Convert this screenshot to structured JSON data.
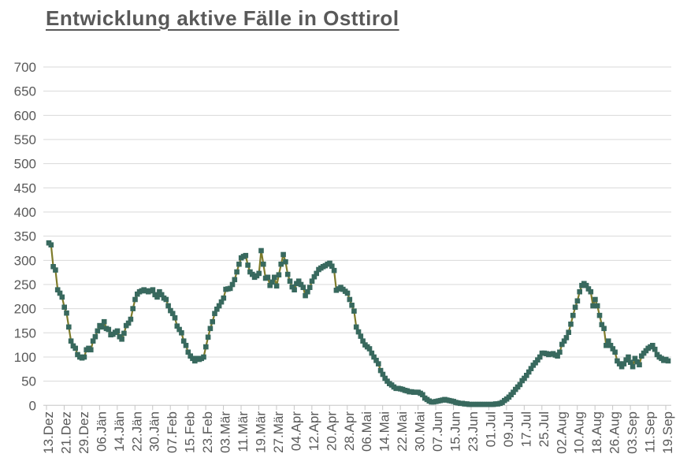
{
  "chart_data": {
    "type": "line",
    "title": "Entwicklung aktive Fälle in Osttirol",
    "legend": "none",
    "grid": "horizontal-only",
    "ylim": [
      0,
      700
    ],
    "y_step": 50,
    "y_tick_labels": [
      "0",
      "50",
      "100",
      "150",
      "200",
      "250",
      "300",
      "350",
      "400",
      "450",
      "500",
      "550",
      "600",
      "650",
      "700"
    ],
    "x_tick_labels": [
      "13.Dez",
      "21.Dez",
      "29.Dez",
      "06.Jän",
      "14.Jän",
      "22.Jän",
      "30.Jän",
      "07.Feb",
      "15.Feb",
      "23.Feb",
      "03.Mär",
      "11.Mär",
      "19.Mär",
      "27.Mär",
      "04.Apr",
      "12.Apr",
      "20.Apr",
      "28.Apr",
      "06.Mai",
      "14.Mai",
      "22.Mai",
      "30.Mai",
      "07.Jun",
      "15.Jun",
      "23.Jun",
      "01.Jul",
      "09.Jul",
      "17.Jul",
      "25.Jul",
      "02.Aug",
      "10.Aug",
      "18.Aug",
      "26.Aug",
      "03.Sep",
      "11.Sep",
      "19.Sep"
    ],
    "points_per_tick": 8,
    "marker": "square",
    "colors": {
      "marker": "#38695e",
      "line": "#7e7b2a",
      "gridline": "#d9d9d9",
      "axis": "#c6c6c6",
      "labels": "#595959",
      "title": "#595959"
    },
    "values": [
      336,
      332,
      287,
      280,
      239,
      232,
      224,
      203,
      191,
      162,
      133,
      123,
      118,
      105,
      100,
      98,
      100,
      115,
      118,
      115,
      133,
      142,
      154,
      165,
      162,
      173,
      159,
      157,
      146,
      147,
      151,
      154,
      142,
      137,
      149,
      165,
      170,
      178,
      200,
      219,
      230,
      235,
      237,
      239,
      237,
      235,
      237,
      239,
      229,
      224,
      235,
      229,
      222,
      219,
      206,
      196,
      190,
      181,
      164,
      157,
      150,
      133,
      124,
      110,
      102,
      97,
      92,
      97,
      95,
      97,
      100,
      121,
      141,
      159,
      173,
      190,
      199,
      206,
      214,
      222,
      240,
      241,
      242,
      250,
      260,
      276,
      292,
      305,
      308,
      310,
      290,
      276,
      271,
      265,
      268,
      273,
      320,
      292,
      263,
      265,
      248,
      255,
      265,
      247,
      270,
      292,
      312,
      297,
      271,
      257,
      245,
      239,
      252,
      257,
      250,
      244,
      227,
      235,
      244,
      257,
      266,
      273,
      281,
      284,
      287,
      289,
      292,
      294,
      288,
      279,
      238,
      241,
      244,
      240,
      236,
      232,
      219,
      207,
      195,
      162,
      152,
      143,
      133,
      125,
      121,
      117,
      108,
      100,
      93,
      86,
      72,
      64,
      56,
      50,
      45,
      42,
      38,
      35,
      35,
      34,
      33,
      31,
      30,
      28,
      28,
      27,
      27,
      27,
      25,
      22,
      15,
      12,
      9,
      7,
      7,
      8,
      9,
      10,
      11,
      12,
      11,
      10,
      9,
      8,
      6,
      5,
      4,
      4,
      3,
      3,
      2,
      2,
      2,
      2,
      2,
      2,
      2,
      2,
      2,
      2,
      2,
      2,
      3,
      3,
      4,
      6,
      10,
      13,
      17,
      22,
      27,
      33,
      38,
      43,
      51,
      56,
      62,
      69,
      76,
      83,
      88,
      94,
      100,
      108,
      108,
      107,
      105,
      106,
      107,
      104,
      102,
      110,
      126,
      133,
      140,
      151,
      168,
      186,
      203,
      216,
      235,
      248,
      252,
      248,
      241,
      235,
      206,
      219,
      206,
      186,
      167,
      159,
      124,
      133,
      124,
      117,
      110,
      92,
      86,
      80,
      86,
      94,
      100,
      89,
      80,
      97,
      90,
      84,
      102,
      108,
      113,
      118,
      121,
      124,
      116,
      105,
      100,
      97,
      93,
      95,
      92
    ]
  }
}
